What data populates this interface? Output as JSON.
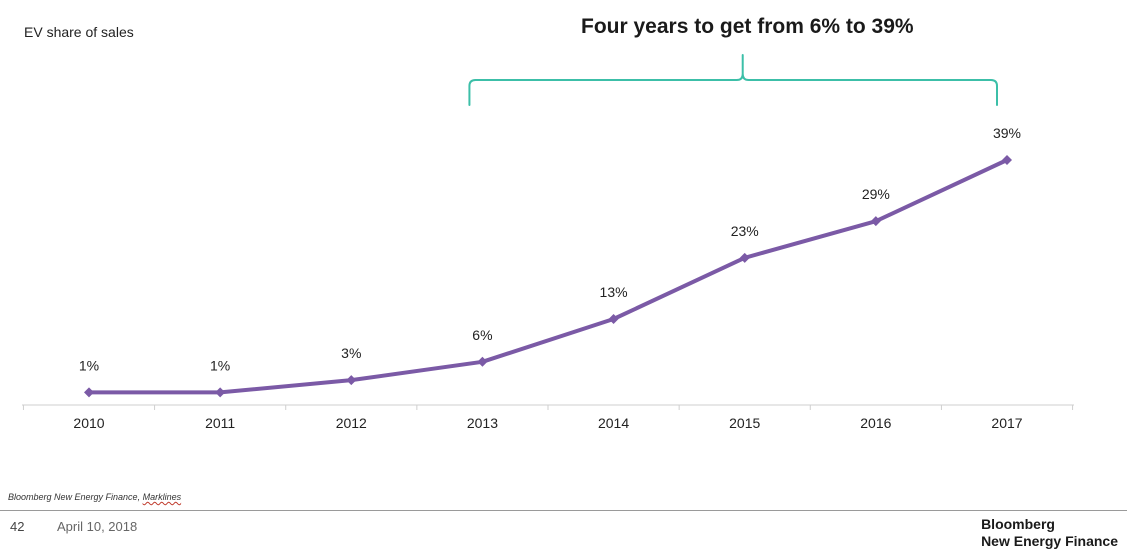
{
  "headline": "Four years to get from 6% to 39%",
  "source": {
    "text": "Bloomberg New Energy Finance, ",
    "underlined": "Marklines"
  },
  "footer": {
    "page_number": "42",
    "date": "April 10, 2018",
    "brand_line1": "Bloomberg",
    "brand_line2": "New Energy Finance"
  },
  "colors": {
    "series": "#7b5aa6",
    "bracket": "#3cbfa8",
    "axis": "#cfcfcf"
  },
  "chart_data": {
    "type": "line",
    "ylabel": "EV share of sales",
    "x": [
      "2010",
      "2011",
      "2012",
      "2013",
      "2014",
      "2015",
      "2016",
      "2017"
    ],
    "series": [
      {
        "values": [
          1,
          1,
          3,
          6,
          13,
          23,
          29,
          39
        ],
        "data_labels": [
          "1%",
          "1%",
          "3%",
          "6%",
          "13%",
          "23%",
          "29%",
          "39%"
        ]
      }
    ],
    "ylim": [
      0,
      39
    ],
    "grid": false,
    "legend": "none",
    "annotation": {
      "text": "Four years to get from 6% to 39%",
      "bracket_from": "2013",
      "bracket_to": "2017"
    }
  }
}
